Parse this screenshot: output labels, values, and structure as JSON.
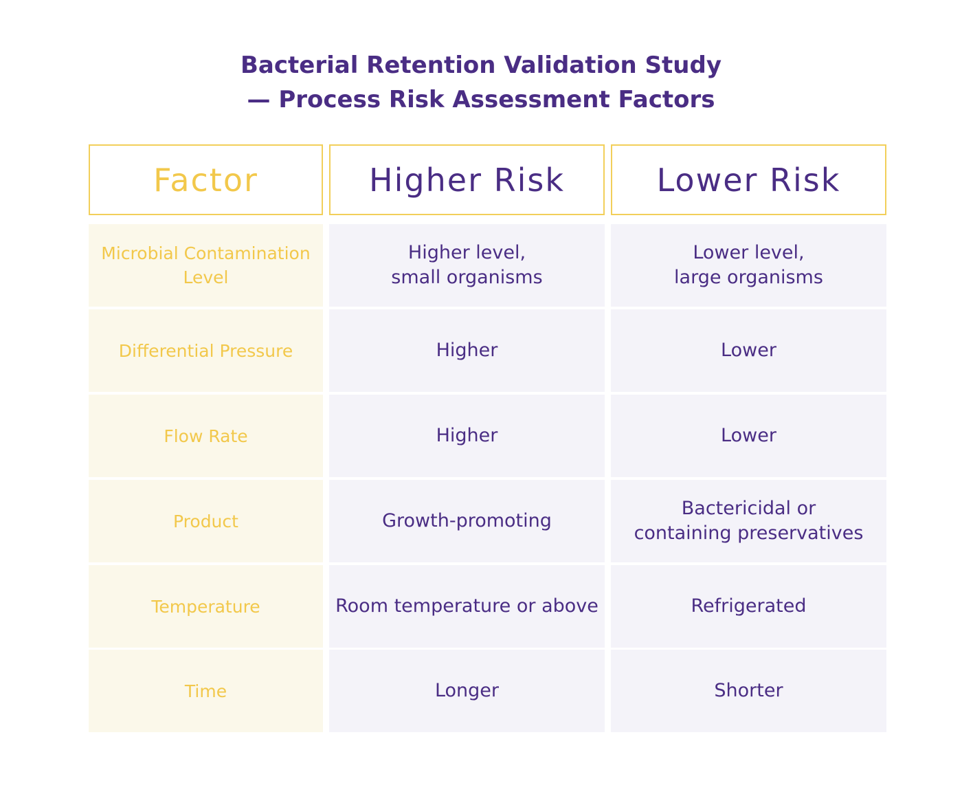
{
  "title": {
    "line1": "Bacterial Retention Validation Study",
    "line2": "— Process Risk Assessment Factors"
  },
  "headers": {
    "factor": "Factor",
    "higher": "Higher Risk",
    "lower": "Lower Risk"
  },
  "rows": [
    {
      "factor": [
        "Microbial Contamination",
        "Level"
      ],
      "higher": [
        "Higher level,",
        "small organisms"
      ],
      "lower": [
        "Lower level,",
        "large organisms"
      ]
    },
    {
      "factor": [
        "Differential Pressure"
      ],
      "higher": [
        "Higher"
      ],
      "lower": [
        "Lower"
      ]
    },
    {
      "factor": [
        "Flow Rate"
      ],
      "higher": [
        "Higher"
      ],
      "lower": [
        "Lower"
      ]
    },
    {
      "factor": [
        "Product"
      ],
      "higher": [
        "Growth-promoting"
      ],
      "lower": [
        "Bactericidal or",
        "containing preservatives"
      ]
    },
    {
      "factor": [
        "Temperature"
      ],
      "higher": [
        "Room temperature or above"
      ],
      "lower": [
        "Refrigerated"
      ]
    },
    {
      "factor": [
        "Time"
      ],
      "higher": [
        "Longer"
      ],
      "lower": [
        "Shorter"
      ]
    }
  ],
  "colors": {
    "purple": "#4a2d84",
    "yellow": "#f2c84b",
    "yellow_border": "#f2cf5a",
    "factor_bg": "#fbf8ea",
    "value_bg": "#f4f3f9"
  }
}
